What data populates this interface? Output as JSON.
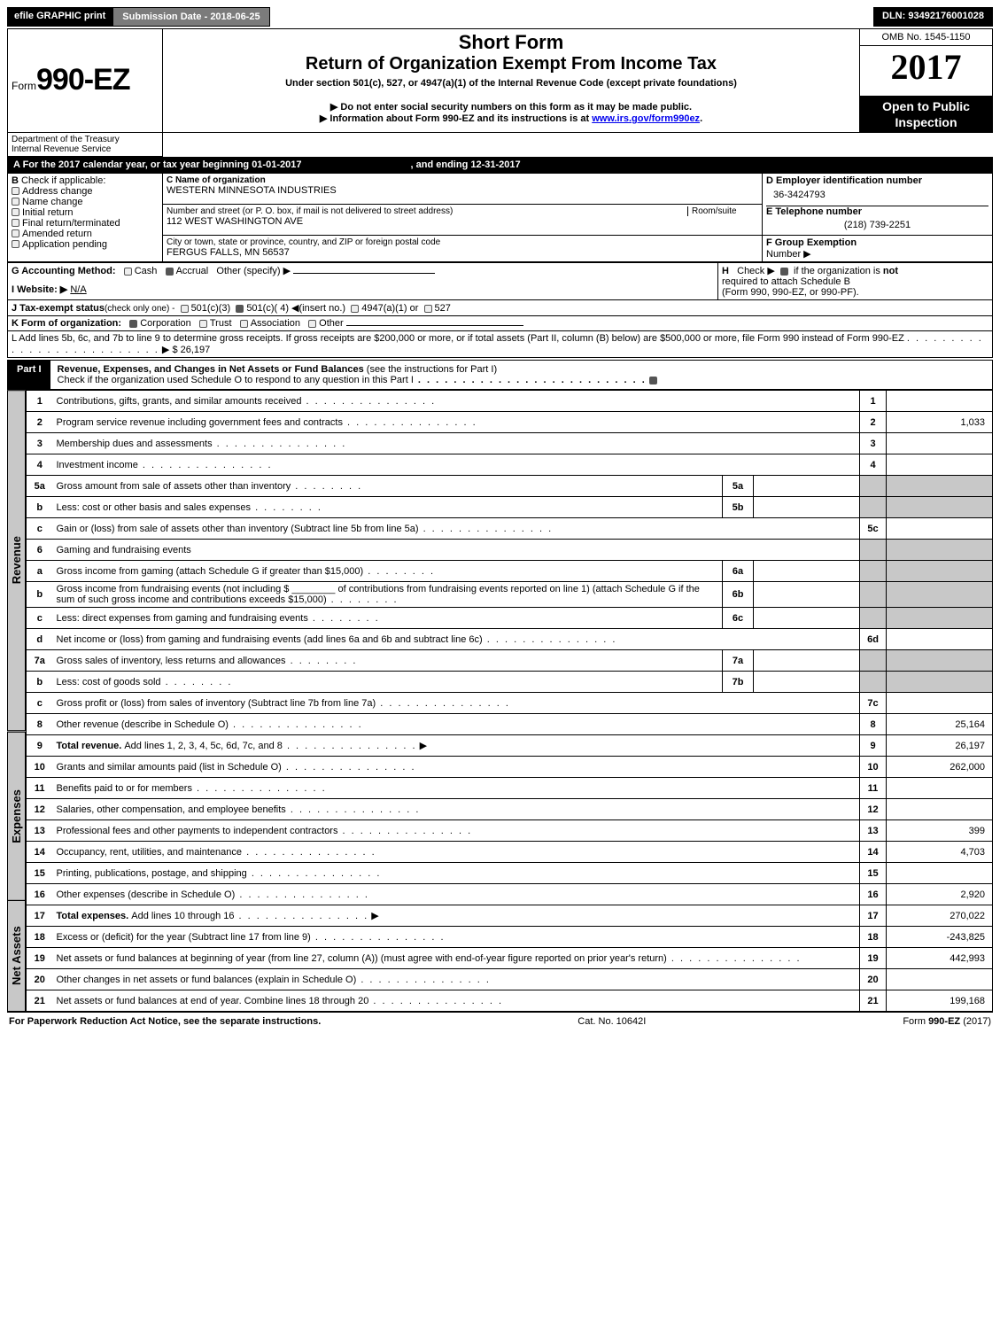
{
  "top": {
    "efile": "efile GRAPHIC print",
    "submission_label": "Submission Date - 2018-06-25",
    "dln": "DLN: 93492176001028"
  },
  "header": {
    "form_label": "Form",
    "form_number": "990-EZ",
    "short_form": "Short Form",
    "title": "Return of Organization Exempt From Income Tax",
    "under_section": "Under section 501(c), 527, or 4947(a)(1) of the Internal Revenue Code (except private foundations)",
    "omb": "OMB No. 1545-1150",
    "year": "2017",
    "open_public_1": "Open to Public",
    "open_public_2": "Inspection",
    "dept": "Department of the Treasury",
    "irs": "Internal Revenue Service",
    "note1": "Do not enter social security numbers on this form as it may be made public.",
    "note2_pre": "Information about Form 990-EZ and its instructions is at ",
    "note2_link": "www.irs.gov/form990ez",
    "note2_post": "."
  },
  "sectionA": {
    "a_text": "A  For the 2017 calendar year, or tax year beginning 01-01-2017",
    "a_end": ", and ending 12-31-2017",
    "b_label": "B",
    "b_check": "Check if applicable:",
    "b_opts": [
      "Address change",
      "Name change",
      "Initial return",
      "Final return/terminated",
      "Amended return",
      "Application pending"
    ],
    "c_label": "C Name of organization",
    "c_name": "WESTERN MINNESOTA INDUSTRIES",
    "c_street_label": "Number and street (or P. O. box, if mail is not delivered to street address)",
    "c_room": "Room/suite",
    "c_street": "112 WEST WASHINGTON AVE",
    "c_city_label": "City or town, state or province, country, and ZIP or foreign postal code",
    "c_city": "FERGUS FALLS, MN  56537",
    "d_label": "D Employer identification number",
    "d_ein": "36-3424793",
    "e_label": "E Telephone number",
    "e_phone": "(218) 739-2251",
    "f_label": "F Group Exemption",
    "f_label2": "Number  ▶",
    "g_label": "G Accounting Method:",
    "g_cash": "Cash",
    "g_accrual": "Accrual",
    "g_other": "Other (specify) ▶",
    "h_label": "H",
    "h_check": "Check ▶",
    "h_text1": "if the organization is ",
    "h_not": "not",
    "h_text2": "required to attach Schedule B",
    "h_text3": "(Form 990, 990-EZ, or 990-PF).",
    "i_label": "I Website: ▶",
    "i_val": "N/A",
    "j_label": "J Tax-exempt status",
    "j_rest": "(check only one) -",
    "j_501c3": "501(c)(3)",
    "j_501c": "501(c)( 4) ◀(insert no.)",
    "j_4947": "4947(a)(1) or",
    "j_527": "527",
    "k_label": "K Form of organization:",
    "k_corp": "Corporation",
    "k_trust": "Trust",
    "k_assoc": "Association",
    "k_other": "Other",
    "l_text_pre": "L Add lines 5b, 6c, and 7b to line 9 to determine gross receipts. If gross receipts are $200,000 or more, or if total assets (Part II, column (B) below) are $500,000 or more, file Form 990 instead of Form 990-EZ",
    "l_amt_label": "▶ $ 26,197"
  },
  "part1": {
    "label": "Part I",
    "title": "Revenue, Expenses, and Changes in Net Assets or Fund Balances",
    "title_paren": " (see the instructions for Part I)",
    "check_text": "Check if the organization used Schedule O to respond to any question in this Part I"
  },
  "side_labels": {
    "revenue": "Revenue",
    "expenses": "Expenses",
    "netassets": "Net Assets"
  },
  "lines": [
    {
      "n": "1",
      "d": "Contributions, gifts, grants, and similar amounts received",
      "amt": "",
      "num": "1"
    },
    {
      "n": "2",
      "d": "Program service revenue including government fees and contracts",
      "amt": "1,033",
      "num": "2"
    },
    {
      "n": "3",
      "d": "Membership dues and assessments",
      "amt": "",
      "num": "3"
    },
    {
      "n": "4",
      "d": "Investment income",
      "amt": "",
      "num": "4"
    },
    {
      "n": "5a",
      "d": "Gross amount from sale of assets other than inventory",
      "sub": "5a",
      "subv": ""
    },
    {
      "n": "b",
      "d": "Less: cost or other basis and sales expenses",
      "sub": "5b",
      "subv": ""
    },
    {
      "n": "c",
      "d": "Gain or (loss) from sale of assets other than inventory (Subtract line 5b from line 5a)",
      "amt": "",
      "num": "5c"
    },
    {
      "n": "6",
      "d": "Gaming and fundraising events"
    },
    {
      "n": "a",
      "d": "Gross income from gaming (attach Schedule G if greater than $15,000)",
      "sub": "6a",
      "subv": ""
    },
    {
      "n": "b",
      "d_html": "Gross income from fundraising events (not including $ ________ of contributions from fundraising events reported on line 1) (attach Schedule G if the sum of such gross income and contributions exceeds $15,000)",
      "sub": "6b",
      "subv": ""
    },
    {
      "n": "c",
      "d": "Less: direct expenses from gaming and fundraising events",
      "sub": "6c",
      "subv": ""
    },
    {
      "n": "d",
      "d": "Net income or (loss) from gaming and fundraising events (add lines 6a and 6b and subtract line 6c)",
      "amt": "",
      "num": "6d"
    },
    {
      "n": "7a",
      "d": "Gross sales of inventory, less returns and allowances",
      "sub": "7a",
      "subv": ""
    },
    {
      "n": "b",
      "d": "Less: cost of goods sold",
      "sub": "7b",
      "subv": ""
    },
    {
      "n": "c",
      "d": "Gross profit or (loss) from sales of inventory (Subtract line 7b from line 7a)",
      "amt": "",
      "num": "7c"
    },
    {
      "n": "8",
      "d": "Other revenue (describe in Schedule O)",
      "amt": "25,164",
      "num": "8"
    },
    {
      "n": "9",
      "d_bold": "Total revenue. ",
      "d": "Add lines 1, 2, 3, 4, 5c, 6d, 7c, and 8",
      "amt": "26,197",
      "num": "9",
      "arrow": true
    },
    {
      "n": "10",
      "d": "Grants and similar amounts paid (list in Schedule O)",
      "amt": "262,000",
      "num": "10"
    },
    {
      "n": "11",
      "d": "Benefits paid to or for members",
      "amt": "",
      "num": "11"
    },
    {
      "n": "12",
      "d": "Salaries, other compensation, and employee benefits",
      "amt": "",
      "num": "12"
    },
    {
      "n": "13",
      "d": "Professional fees and other payments to independent contractors",
      "amt": "399",
      "num": "13"
    },
    {
      "n": "14",
      "d": "Occupancy, rent, utilities, and maintenance",
      "amt": "4,703",
      "num": "14"
    },
    {
      "n": "15",
      "d": "Printing, publications, postage, and shipping",
      "amt": "",
      "num": "15"
    },
    {
      "n": "16",
      "d": "Other expenses (describe in Schedule O)",
      "amt": "2,920",
      "num": "16"
    },
    {
      "n": "17",
      "d_bold": "Total expenses. ",
      "d": "Add lines 10 through 16",
      "amt": "270,022",
      "num": "17",
      "arrow": true
    },
    {
      "n": "18",
      "d": "Excess or (deficit) for the year (Subtract line 17 from line 9)",
      "amt": "-243,825",
      "num": "18"
    },
    {
      "n": "19",
      "d": "Net assets or fund balances at beginning of year (from line 27, column (A)) (must agree with end-of-year figure reported on prior year's return)",
      "amt": "442,993",
      "num": "19"
    },
    {
      "n": "20",
      "d": "Other changes in net assets or fund balances (explain in Schedule O)",
      "amt": "",
      "num": "20"
    },
    {
      "n": "21",
      "d": "Net assets or fund balances at end of year. Combine lines 18 through 20",
      "amt": "199,168",
      "num": "21"
    }
  ],
  "footer": {
    "left": "For Paperwork Reduction Act Notice, see the separate instructions.",
    "mid": "Cat. No. 10642I",
    "right_pre": "Form ",
    "right_form": "990-EZ",
    "right_year": " (2017)"
  }
}
